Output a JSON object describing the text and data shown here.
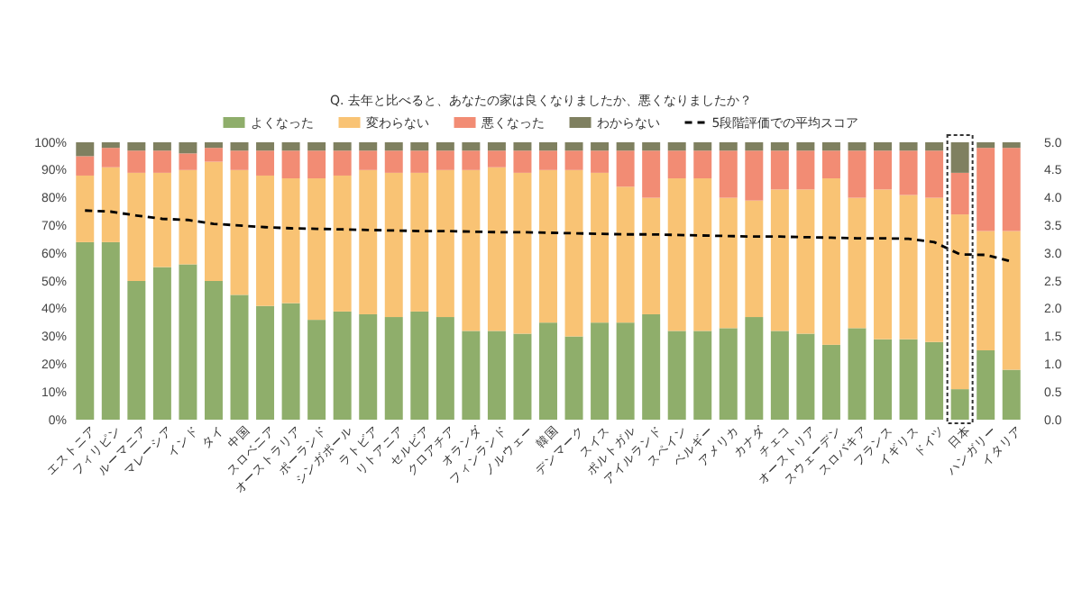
{
  "chart_data": {
    "type": "bar",
    "stacked": true,
    "title": "Q. 去年と比べると、あなたの家は良くなりましたか、悪くなりましたか？",
    "categories": [
      "エストニア",
      "フィリピン",
      "ルーマニア",
      "マレーシア",
      "インド",
      "タイ",
      "中国",
      "スロベニア",
      "オーストラリア",
      "ポーランド",
      "シンガポール",
      "ラトビア",
      "リトアニア",
      "セルビア",
      "クロアチア",
      "オランダ",
      "フィンランド",
      "ノルウェー",
      "韓国",
      "デンマーク",
      "スイス",
      "ポルトガル",
      "アイルランド",
      "スペイン",
      "ベルギー",
      "アメリカ",
      "カナダ",
      "チェコ",
      "オーストリア",
      "スウェーデン",
      "スロバキア",
      "フランス",
      "イギリス",
      "ドイツ",
      "日本",
      "ハンガリー",
      "イタリア"
    ],
    "series": [
      {
        "name": "よくなった",
        "color": "#8fae6b",
        "values": [
          64,
          64,
          50,
          55,
          56,
          50,
          45,
          41,
          42,
          36,
          39,
          38,
          37,
          39,
          37,
          32,
          32,
          31,
          35,
          30,
          35,
          35,
          38,
          32,
          32,
          33,
          37,
          32,
          31,
          27,
          33,
          29,
          29,
          28,
          11,
          25,
          18
        ]
      },
      {
        "name": "変わらない",
        "color": "#f9c374",
        "values": [
          24,
          27,
          39,
          34,
          34,
          43,
          45,
          47,
          45,
          51,
          49,
          52,
          52,
          50,
          53,
          58,
          59,
          58,
          55,
          60,
          54,
          49,
          42,
          55,
          55,
          47,
          42,
          51,
          52,
          60,
          47,
          54,
          52,
          52,
          63,
          43,
          50
        ]
      },
      {
        "name": "悪くなった",
        "color": "#f28c74",
        "values": [
          7,
          7,
          8,
          8,
          6,
          5,
          7,
          9,
          10,
          10,
          9,
          7,
          8,
          8,
          7,
          7,
          6,
          8,
          7,
          7,
          8,
          13,
          17,
          10,
          10,
          17,
          18,
          14,
          14,
          10,
          17,
          14,
          16,
          17,
          15,
          30,
          30
        ]
      },
      {
        "name": "わからない",
        "color": "#7f8060",
        "values": [
          5,
          2,
          3,
          3,
          4,
          2,
          3,
          3,
          3,
          3,
          3,
          3,
          3,
          3,
          3,
          3,
          3,
          3,
          3,
          3,
          3,
          3,
          3,
          3,
          3,
          3,
          3,
          3,
          3,
          3,
          3,
          3,
          3,
          3,
          11,
          2,
          2
        ]
      },
      {
        "name": "5段階評価での平均スコア",
        "type": "line",
        "axis": "y2",
        "color": "#000000",
        "line_style": "dashed",
        "values": [
          3.77,
          3.75,
          3.68,
          3.62,
          3.6,
          3.53,
          3.5,
          3.47,
          3.45,
          3.44,
          3.43,
          3.42,
          3.41,
          3.4,
          3.4,
          3.39,
          3.38,
          3.38,
          3.37,
          3.36,
          3.35,
          3.34,
          3.34,
          3.33,
          3.32,
          3.31,
          3.3,
          3.3,
          3.29,
          3.28,
          3.27,
          3.27,
          3.26,
          3.2,
          2.98,
          2.97,
          2.85
        ]
      }
    ],
    "ylim": [
      0,
      100
    ],
    "yticks": [
      {
        "value": 0,
        "label": "0%"
      },
      {
        "value": 10,
        "label": "10%"
      },
      {
        "value": 20,
        "label": "20%"
      },
      {
        "value": 30,
        "label": "30%"
      },
      {
        "value": 40,
        "label": "40%"
      },
      {
        "value": 50,
        "label": "50%"
      },
      {
        "value": 60,
        "label": "60%"
      },
      {
        "value": 70,
        "label": "70%"
      },
      {
        "value": 80,
        "label": "80%"
      },
      {
        "value": 90,
        "label": "90%"
      },
      {
        "value": 100,
        "label": "100%"
      }
    ],
    "y2lim": [
      0,
      5
    ],
    "y2ticks": [
      {
        "value": 0,
        "label": "0.0"
      },
      {
        "value": 0.5,
        "label": "0.5"
      },
      {
        "value": 1,
        "label": "1.0"
      },
      {
        "value": 1.5,
        "label": "1.5"
      },
      {
        "value": 2,
        "label": "2.0"
      },
      {
        "value": 2.5,
        "label": "2.5"
      },
      {
        "value": 3,
        "label": "3.0"
      },
      {
        "value": 3.5,
        "label": "3.5"
      },
      {
        "value": 4,
        "label": "4.0"
      },
      {
        "value": 4.5,
        "label": "4.5"
      },
      {
        "value": 5,
        "label": "5.0"
      }
    ],
    "legend": "top",
    "grid": false
  }
}
